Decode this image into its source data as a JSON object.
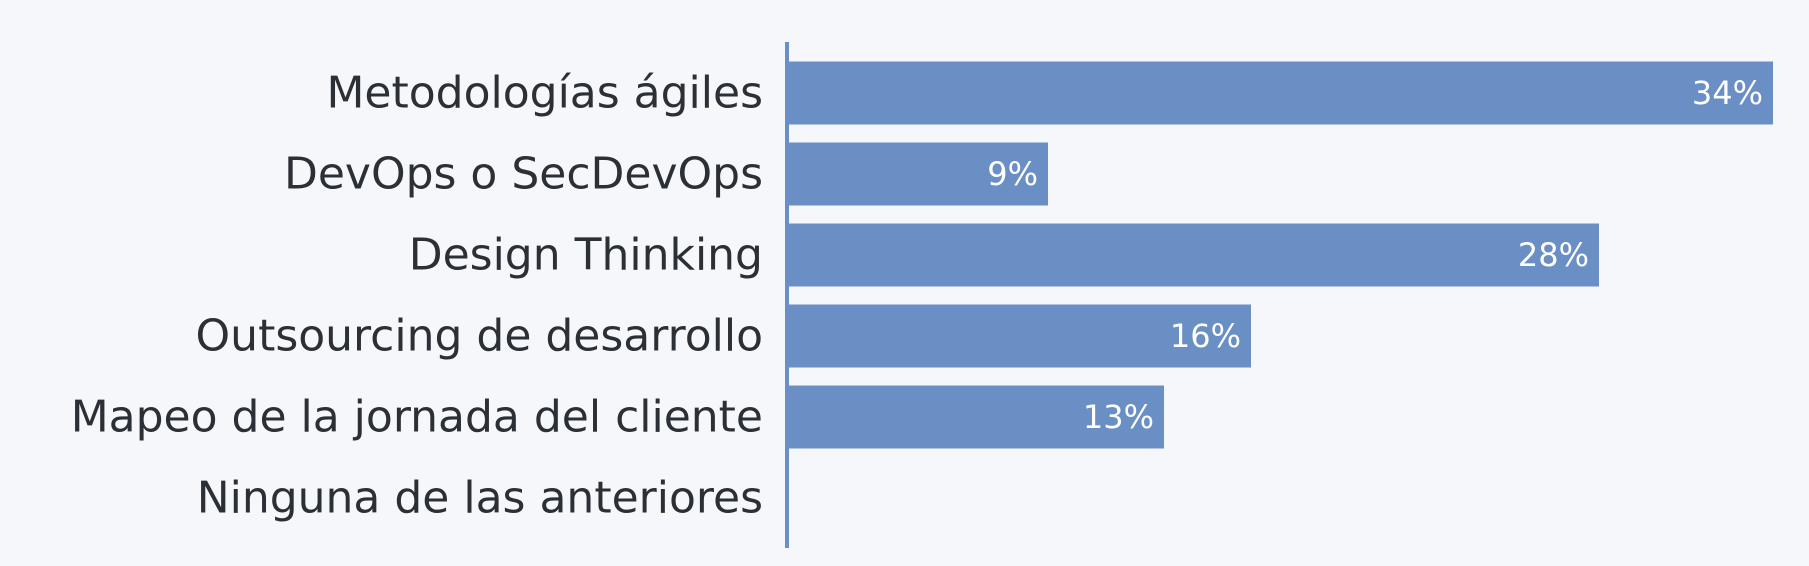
{
  "chart_data": {
    "type": "bar",
    "orientation": "horizontal",
    "categories": [
      "Metodologías ágiles",
      "DevOps o SecDevOps",
      "Design Thinking",
      "Outsourcing de desarrollo",
      "Mapeo de la jornada del cliente",
      "Ninguna de las anteriores"
    ],
    "values": [
      34,
      9,
      28,
      16,
      13,
      0
    ],
    "value_labels": [
      "34%",
      "9%",
      "28%",
      "16%",
      "13%",
      ""
    ],
    "xlim": [
      0,
      34
    ],
    "grid": false,
    "legend": "none",
    "colors": {
      "bar": "#6a8fc4",
      "axis": "#6a8fc4",
      "background": "#f6f7fb",
      "category_text": "#2b2f36",
      "value_text": "#ffffff"
    }
  }
}
